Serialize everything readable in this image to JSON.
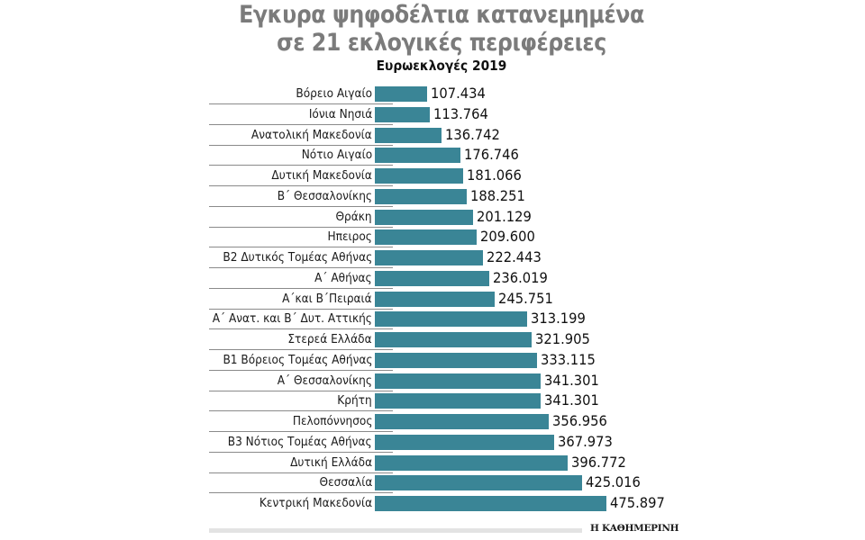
{
  "title_line1": "Εγκυρα ψηφοδέλτια κατανεμημένα",
  "title_line2": "σε 21 εκλογικές περιφέρειες",
  "subtitle": "Ευρωεκλογές 2019",
  "credit": "Η ΚΑΘΗΜΕΡΙΝΗ",
  "colors": {
    "bar": "#3a8596",
    "title": "#7b7b7b",
    "separator": "#8a8a8a",
    "footer_bar": "#e3e3e3"
  },
  "rows": [
    {
      "label": "Βόρειο Αιγαίο",
      "value_text": "107.434",
      "value": 107434
    },
    {
      "label": "Ιόνια Νησιά",
      "value_text": "113.764",
      "value": 113764
    },
    {
      "label": "Ανατολική Μακεδονία",
      "value_text": "136.742",
      "value": 136742
    },
    {
      "label": "Νότιο Αιγαίο",
      "value_text": "176.746",
      "value": 176746
    },
    {
      "label": "Δυτική Μακεδονία",
      "value_text": "181.066",
      "value": 181066
    },
    {
      "label": "Β΄ Θεσσαλονίκης",
      "value_text": "188.251",
      "value": 188251
    },
    {
      "label": "Θράκη",
      "value_text": "201.129",
      "value": 201129
    },
    {
      "label": "Ηπειρος",
      "value_text": "209.600",
      "value": 209600
    },
    {
      "label": "Β2 Δυτικός Τομέας Αθήνας",
      "value_text": "222.443",
      "value": 222443
    },
    {
      "label": "Α΄ Αθήνας",
      "value_text": "236.019",
      "value": 236019
    },
    {
      "label": "Α΄και Β΄Πειραιά",
      "value_text": "245.751",
      "value": 245751
    },
    {
      "label": "Α΄ Ανατ. και Β΄ Δυτ. Αττικής",
      "value_text": "313.199",
      "value": 313199
    },
    {
      "label": "Στερεά Ελλάδα",
      "value_text": "321.905",
      "value": 321905
    },
    {
      "label": "Β1 Βόρειος Τομέας Αθήνας",
      "value_text": "333.115",
      "value": 333115
    },
    {
      "label": "Α΄ Θεσσαλονίκης",
      "value_text": "341.301",
      "value": 341301
    },
    {
      "label": "Κρήτη",
      "value_text": "341.301",
      "value": 341301
    },
    {
      "label": "Πελοπόννησος",
      "value_text": "356.956",
      "value": 356956
    },
    {
      "label": "Β3 Νότιος Τομέας Αθήνας",
      "value_text": "367.973",
      "value": 367973
    },
    {
      "label": "Δυτική Ελλάδα",
      "value_text": "396.772",
      "value": 396772
    },
    {
      "label": "Θεσσαλία",
      "value_text": "425.016",
      "value": 425016
    },
    {
      "label": "Κεντρική Μακεδονία",
      "value_text": "475.897",
      "value": 475897
    }
  ],
  "chart_data": {
    "type": "bar",
    "orientation": "horizontal",
    "title": "Εγκυρα ψηφοδέλτια κατανεμημένα σε 21 εκλογικές περιφέρειες",
    "subtitle": "Ευρωεκλογές 2019",
    "xlabel": "",
    "ylabel": "",
    "grid": false,
    "legend": null,
    "source": "Η ΚΑΘΗΜΕΡΙΝΗ",
    "categories": [
      "Βόρειο Αιγαίο",
      "Ιόνια Νησιά",
      "Ανατολική Μακεδονία",
      "Νότιο Αιγαίο",
      "Δυτική Μακεδονία",
      "Β΄ Θεσσαλονίκης",
      "Θράκη",
      "Ηπειρος",
      "Β2 Δυτικός Τομέας Αθήνας",
      "Α΄ Αθήνας",
      "Α΄και Β΄Πειραιά",
      "Α΄ Ανατ. και Β΄ Δυτ. Αττικής",
      "Στερεά Ελλάδα",
      "Β1 Βόρειος Τομέας Αθήνας",
      "Α΄ Θεσσαλονίκης",
      "Κρήτη",
      "Πελοπόννησος",
      "Β3 Νότιος Τομέας Αθήνας",
      "Δυτική Ελλάδα",
      "Θεσσαλία",
      "Κεντρική Μακεδονία"
    ],
    "values": [
      107434,
      113764,
      136742,
      176746,
      181066,
      188251,
      201129,
      209600,
      222443,
      236019,
      245751,
      313199,
      321905,
      333115,
      341301,
      341301,
      356956,
      367973,
      396772,
      425016,
      475897
    ],
    "data_labels": true,
    "xlim": [
      0,
      475897
    ]
  }
}
